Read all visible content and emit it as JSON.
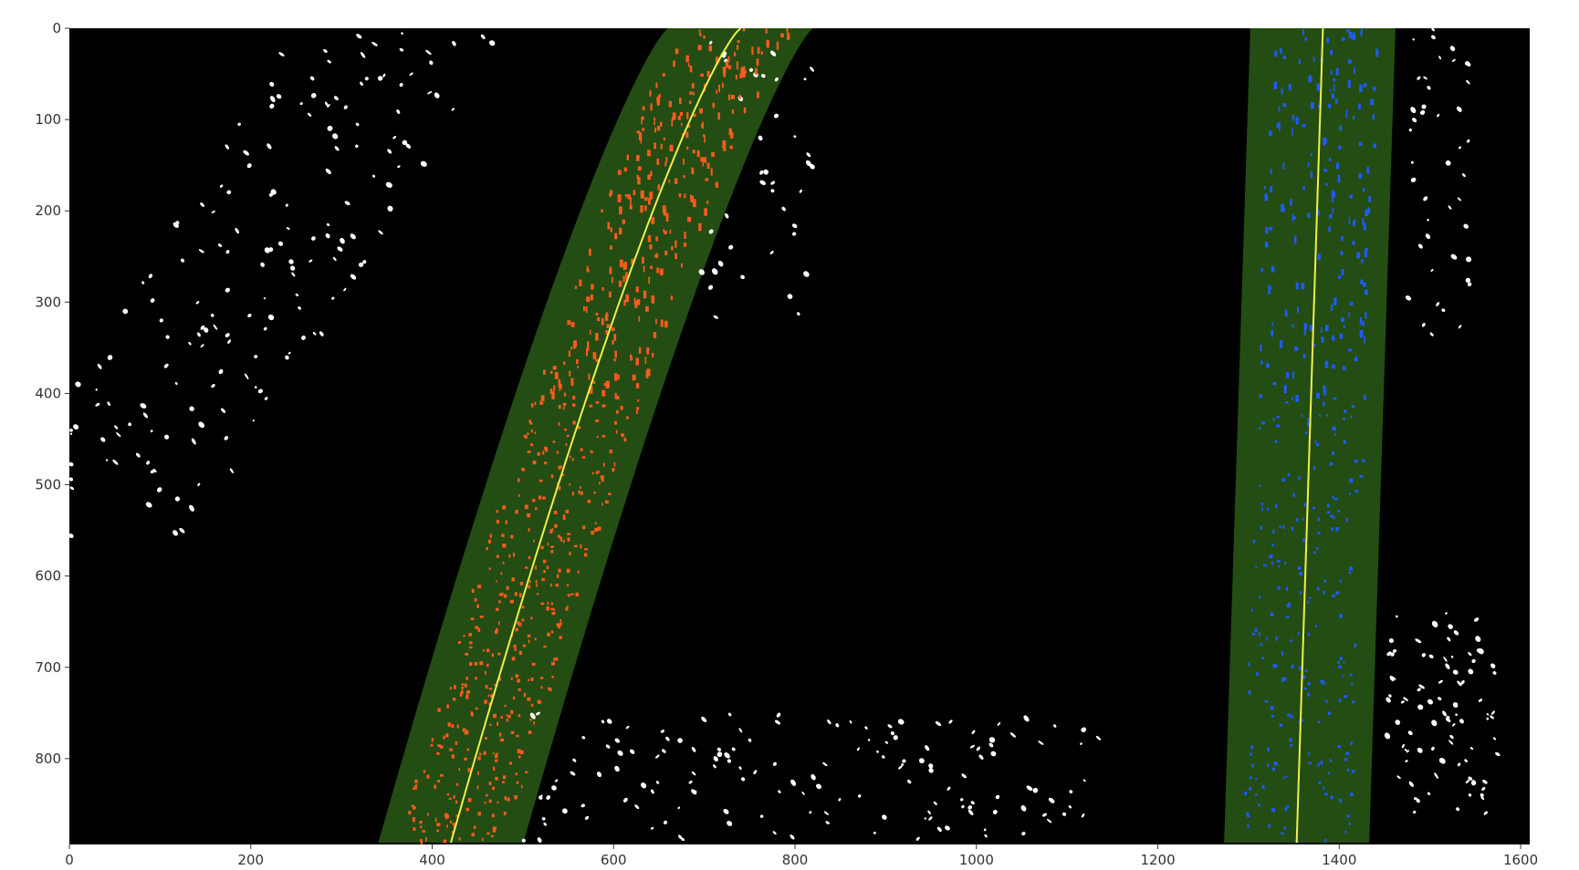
{
  "figure": {
    "kind": "lane-detection-overlay",
    "background_color": "#000000",
    "window_color": "#234d13",
    "left_pixels_color": "#ff5a1e",
    "right_pixels_color": "#1e5aff",
    "noise_color": "#ffffff",
    "fit_color": "#f0f04a"
  },
  "axes": {
    "x_range": [
      0,
      1610
    ],
    "y_range": [
      0,
      894
    ],
    "y_inverted": true,
    "x_ticks": [
      "0",
      "200",
      "400",
      "600",
      "800",
      "1000",
      "1200",
      "1400",
      "1600"
    ],
    "y_ticks": [
      "0",
      "100",
      "200",
      "300",
      "400",
      "500",
      "600",
      "700",
      "800"
    ]
  },
  "lanes": {
    "left": {
      "fit_x_at_top": 740,
      "fit_x_at_bottom": 420,
      "window_half_width": 80
    },
    "right": {
      "fit_x_at_top": 1382,
      "fit_x_at_bottom": 1353,
      "window_half_width": 80
    }
  }
}
